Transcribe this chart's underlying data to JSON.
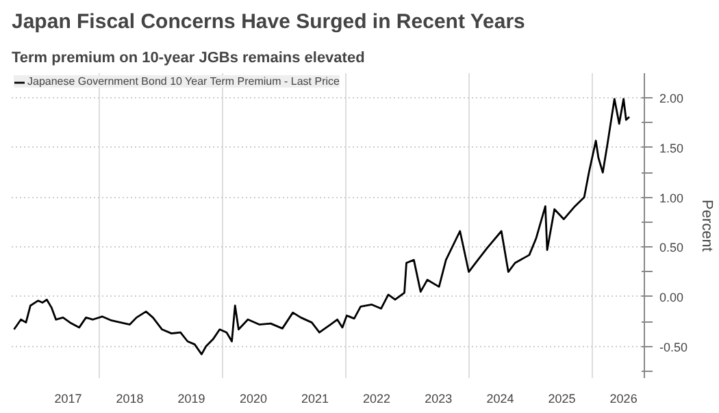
{
  "chart_data": {
    "type": "line",
    "title": "Japan Fiscal Concerns Have Surged in Recent Years",
    "subtitle": "Term premium on 10-year JGBs remains elevated",
    "ylabel": "Percent",
    "x": [
      "2016-08-15",
      "2016-09-25",
      "2016-10-25",
      "2016-11-20",
      "2017-01-05",
      "2017-01-30",
      "2017-02-25",
      "2017-03-25",
      "2017-04-20",
      "2017-06-01",
      "2017-07-12",
      "2017-09-05",
      "2017-10-15",
      "2017-11-25",
      "2018-01-20",
      "2018-03-15",
      "2018-05-08",
      "2018-07-01",
      "2018-08-10",
      "2018-10-05",
      "2018-11-15",
      "2019-01-08",
      "2019-03-05",
      "2019-04-27",
      "2019-06-08",
      "2019-07-20",
      "2019-08-30",
      "2019-09-25",
      "2019-11-05",
      "2019-12-15",
      "2020-01-25",
      "2020-02-25",
      "2020-03-15",
      "2020-04-05",
      "2020-05-30",
      "2020-08-05",
      "2020-10-12",
      "2020-12-20",
      "2021-02-20",
      "2021-04-08",
      "2021-06-12",
      "2021-07-27",
      "2021-10-01",
      "2021-11-10",
      "2021-12-10",
      "2022-01-05",
      "2022-02-18",
      "2022-03-28",
      "2022-06-02",
      "2022-07-27",
      "2022-09-08",
      "2022-10-18",
      "2022-12-12",
      "2022-12-24",
      "2023-02-06",
      "2023-03-18",
      "2023-04-27",
      "2023-07-05",
      "2023-08-15",
      "2023-11-06",
      "2023-12-28",
      "2024-02-20",
      "2024-04-15",
      "2024-07-08",
      "2024-08-18",
      "2024-09-27",
      "2024-12-20",
      "2025-01-30",
      "2025-03-25",
      "2025-04-05",
      "2025-05-18",
      "2025-07-12",
      "2025-09-16",
      "2025-11-10",
      "2025-12-08",
      "2026-01-18",
      "2026-02-02",
      "2026-02-28",
      "2026-03-28",
      "2026-05-08",
      "2026-06-05",
      "2026-07-01",
      "2026-07-16",
      "2026-08-04"
    ],
    "series": [
      {
        "name": "Japanese Government Bond 10 Year Term Premium - Last Price",
        "color": "#000000",
        "values": [
          -0.33,
          -0.23,
          -0.26,
          -0.09,
          -0.04,
          -0.06,
          -0.03,
          -0.11,
          -0.23,
          -0.21,
          -0.26,
          -0.31,
          -0.21,
          -0.23,
          -0.2,
          -0.24,
          -0.26,
          -0.28,
          -0.21,
          -0.15,
          -0.21,
          -0.33,
          -0.37,
          -0.36,
          -0.45,
          -0.48,
          -0.58,
          -0.5,
          -0.43,
          -0.33,
          -0.36,
          -0.45,
          -0.09,
          -0.33,
          -0.23,
          -0.28,
          -0.27,
          -0.32,
          -0.16,
          -0.21,
          -0.26,
          -0.36,
          -0.28,
          -0.23,
          -0.31,
          -0.19,
          -0.22,
          -0.1,
          -0.08,
          -0.12,
          0.02,
          -0.03,
          0.04,
          0.34,
          0.37,
          0.05,
          0.17,
          0.1,
          0.37,
          0.66,
          0.25,
          0.37,
          0.49,
          0.66,
          0.25,
          0.34,
          0.42,
          0.59,
          0.91,
          0.47,
          0.88,
          0.78,
          0.91,
          1.0,
          1.25,
          1.57,
          1.4,
          1.25,
          1.54,
          1.99,
          1.74,
          1.99,
          1.78,
          1.81
        ]
      }
    ],
    "xlim": [
      "2016-08-01",
      "2026-11-01"
    ],
    "xticks": [
      {
        "value": "2017-07-01",
        "label": "2017"
      },
      {
        "value": "2018-01-01",
        "label": null
      },
      {
        "value": "2018-07-01",
        "label": "2018"
      },
      {
        "value": "2019-07-01",
        "label": "2019"
      },
      {
        "value": "2020-01-01",
        "label": null
      },
      {
        "value": "2020-07-01",
        "label": "2020"
      },
      {
        "value": "2021-07-01",
        "label": "2021"
      },
      {
        "value": "2022-01-01",
        "label": null
      },
      {
        "value": "2022-07-01",
        "label": "2022"
      },
      {
        "value": "2023-07-01",
        "label": "2023"
      },
      {
        "value": "2024-01-01",
        "label": null
      },
      {
        "value": "2024-07-01",
        "label": "2024"
      },
      {
        "value": "2025-07-01",
        "label": "2025"
      },
      {
        "value": "2026-01-01",
        "label": null
      },
      {
        "value": "2026-07-01",
        "label": "2026"
      }
    ],
    "ylim": [
      -0.82,
      2.25
    ],
    "yticks": [
      {
        "value": -0.75,
        "label": null
      },
      {
        "value": -0.5,
        "label": "-0.50"
      },
      {
        "value": -0.25,
        "label": null
      },
      {
        "value": 0,
        "label": "0.00"
      },
      {
        "value": 0.25,
        "label": null
      },
      {
        "value": 0.5,
        "label": "0.50"
      },
      {
        "value": 0.75,
        "label": null
      },
      {
        "value": 1,
        "label": "1.00"
      },
      {
        "value": 1.25,
        "label": null
      },
      {
        "value": 1.5,
        "label": "1.50"
      },
      {
        "value": 1.75,
        "label": null
      },
      {
        "value": 2,
        "label": "2.00"
      }
    ],
    "grid": true,
    "legend": "top left",
    "line_style": "solid",
    "marker": "none"
  }
}
